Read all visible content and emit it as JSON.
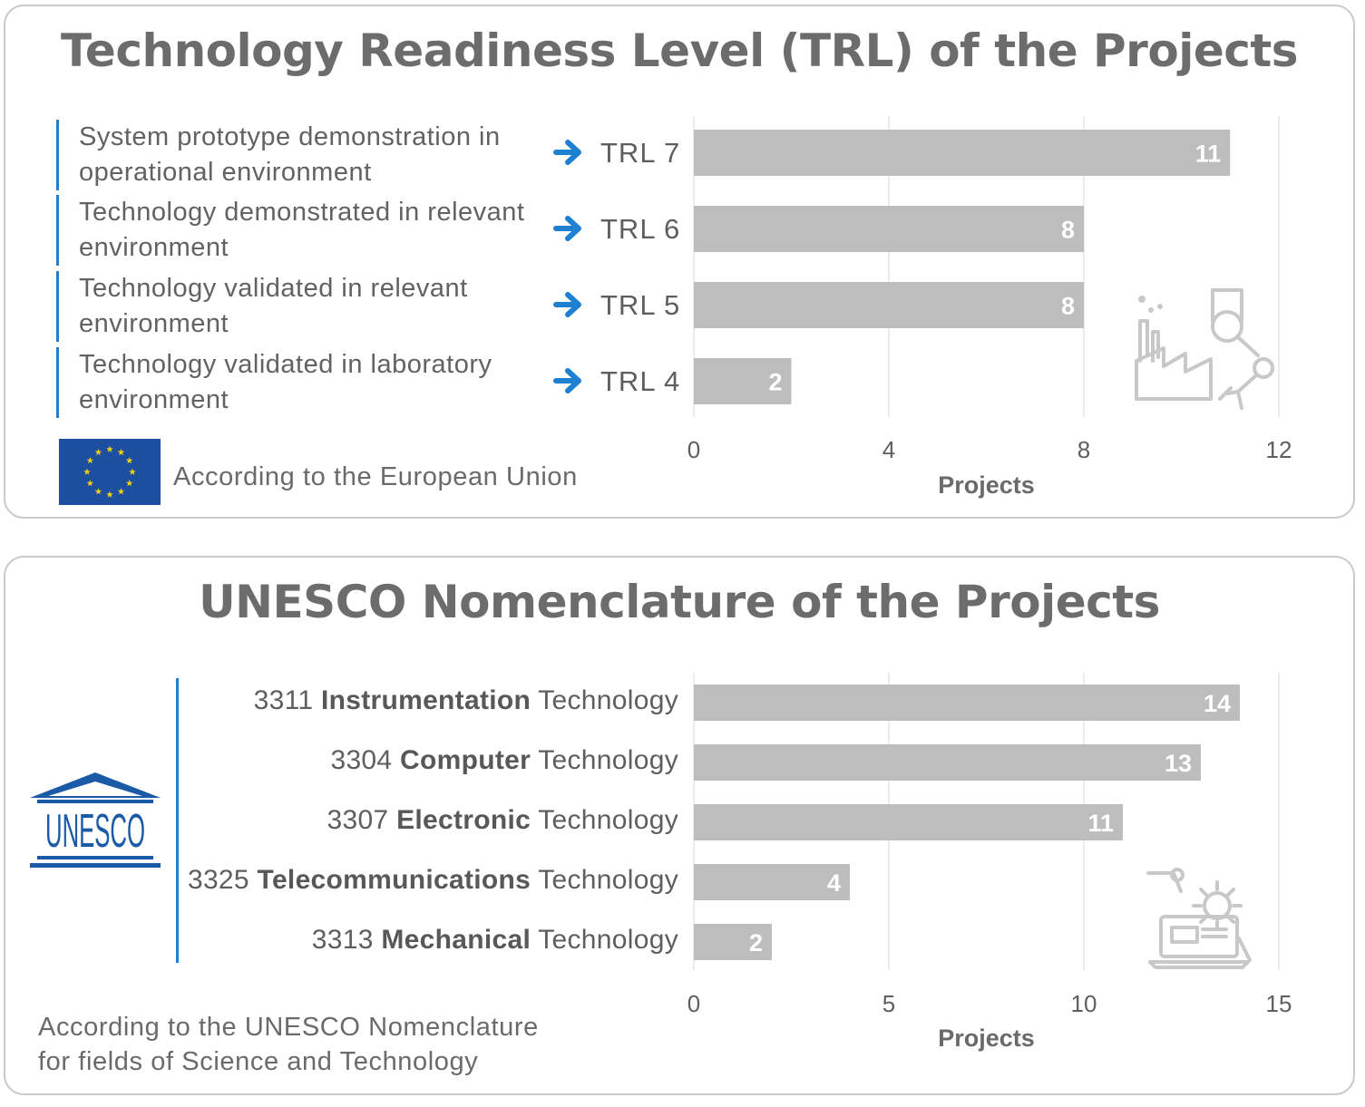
{
  "chart_data": [
    {
      "type": "bar",
      "orientation": "horizontal",
      "title": "Technology Readiness Level (TRL) of the Projects",
      "categories": [
        "TRL 7",
        "TRL 6",
        "TRL 5",
        "TRL 4"
      ],
      "descriptions": [
        "System prototype demonstration in operational environment",
        "Technology demonstrated in relevant environment",
        "Technology validated in relevant environment",
        "Technology validated in laboratory environment"
      ],
      "values": [
        11,
        8,
        8,
        2
      ],
      "xlabel": "Projects",
      "xlim": [
        0,
        12
      ],
      "xticks": [
        "0",
        "4",
        "8",
        "12"
      ],
      "grid": true,
      "bar_color": "#bdbdbd",
      "source": "According to the European Union"
    },
    {
      "type": "bar",
      "orientation": "horizontal",
      "title": "UNESCO Nomenclature of the Projects",
      "categories": [
        {
          "code": "3311",
          "name": "Instrumentation",
          "suffix": "Technology"
        },
        {
          "code": "3304",
          "name": "Computer",
          "suffix": "Technology"
        },
        {
          "code": "3307",
          "name": "Electronic",
          "suffix": "Technology"
        },
        {
          "code": "3325",
          "name": "Telecommunications",
          "suffix": "Technology"
        },
        {
          "code": "3313",
          "name": "Mechanical",
          "suffix": "Technology"
        }
      ],
      "values": [
        14,
        13,
        11,
        4,
        2
      ],
      "xlabel": "Projects",
      "xlim": [
        0,
        15
      ],
      "xticks": [
        "0",
        "5",
        "10",
        "15"
      ],
      "grid": true,
      "bar_color": "#bdbdbd",
      "source_lines": [
        "According to the UNESCO Nomenclature",
        "for fields of Science and Technology"
      ],
      "logo_text": "UNESCO"
    }
  ],
  "colors": {
    "accent": "#1f7fd0",
    "eu_blue": "#1d4fa0",
    "eu_star": "#f5d10d",
    "unesco_blue": "#1a5aa6"
  },
  "icons": [
    "arrow-right-icon",
    "eu-flag-icon",
    "factory-robot-arm-icon",
    "unesco-logo-icon",
    "laptop-gear-robot-icon"
  ]
}
